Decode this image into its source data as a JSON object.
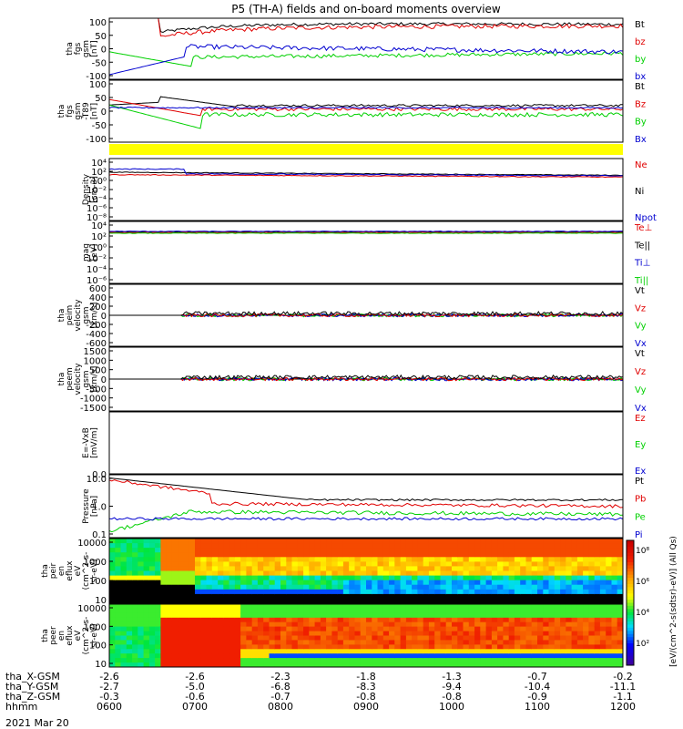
{
  "title": "P5 (TH-A) fields and on-board moments overview",
  "date": "2021 Mar 20",
  "colors": {
    "black": "#000000",
    "red": "#e00000",
    "green": "#00d000",
    "blue": "#0000d0",
    "yellow": "#ffff00"
  },
  "chart_data": [
    {
      "id": "fgs",
      "type": "line",
      "ylabel": [
        "tha",
        "fgs",
        "gsm",
        "[nT]"
      ],
      "yticks": [
        "100",
        "50",
        "0",
        "-50",
        "-100"
      ],
      "ylim": [
        -100,
        100
      ],
      "legend": [
        {
          "label": "Bt",
          "color": "black"
        },
        {
          "label": "bz",
          "color": "red"
        },
        {
          "label": "by",
          "color": "green"
        },
        {
          "label": "bx",
          "color": "blue"
        }
      ]
    },
    {
      "id": "fgs_t89",
      "type": "line",
      "ylabel": [
        "tha",
        "fgs",
        "gsm",
        "-T89",
        "[nT]"
      ],
      "yticks": [
        "100",
        "50",
        "0",
        "-50",
        "-100"
      ],
      "ylim": [
        -125,
        100
      ],
      "legend": [
        {
          "label": "Bt",
          "color": "black"
        },
        {
          "label": "Bz",
          "color": "red"
        },
        {
          "label": "By",
          "color": "green"
        },
        {
          "label": "Bx",
          "color": "blue"
        }
      ]
    },
    {
      "id": "density",
      "type": "line",
      "scale": "log",
      "ylabel": [
        "Density",
        "[cm-3]"
      ],
      "yticks": [
        "10⁴",
        "10²",
        "10⁰",
        "10⁻²",
        "10⁻⁴",
        "10⁻⁶",
        "10⁻⁸"
      ],
      "legend": [
        {
          "label": "Ne",
          "color": "red"
        },
        {
          "label": "Ni",
          "color": "black"
        },
        {
          "label": "Npot",
          "color": "blue"
        }
      ]
    },
    {
      "id": "temperature",
      "type": "line",
      "scale": "log",
      "ylabel": [
        "mag ",
        "[eV]"
      ],
      "yticks": [
        "10⁴",
        "10²",
        "10⁰",
        "10⁻²",
        "10⁻⁴",
        "10⁻⁶"
      ],
      "legend": [
        {
          "label": "Te⊥",
          "color": "red"
        },
        {
          "label": "Te||",
          "color": "black"
        },
        {
          "label": "Ti⊥",
          "color": "blue"
        },
        {
          "label": "Ti||",
          "color": "green"
        }
      ]
    },
    {
      "id": "peim_velocity",
      "type": "line",
      "ylabel": [
        "tha",
        "peim",
        "velocity",
        "gsm",
        "[km/s]"
      ],
      "yticks": [
        "600",
        "400",
        "200",
        "0",
        "-200",
        "-400",
        "-600"
      ],
      "ylim": [
        -600,
        600
      ],
      "legend": [
        {
          "label": "Vt",
          "color": "black"
        },
        {
          "label": "Vz",
          "color": "red"
        },
        {
          "label": "Vy",
          "color": "green"
        },
        {
          "label": "Vx",
          "color": "blue"
        }
      ]
    },
    {
      "id": "peem_velocity",
      "type": "line",
      "ylabel": [
        "tha",
        "peem",
        "velocity",
        "gsm",
        "[km/s]"
      ],
      "yticks": [
        "1500",
        "1000",
        "500",
        "0",
        "-500",
        "-1000",
        "-1500"
      ],
      "ylim": [
        -1500,
        1500
      ],
      "legend": [
        {
          "label": "Vt",
          "color": "black"
        },
        {
          "label": "Vz",
          "color": "red"
        },
        {
          "label": "Vy",
          "color": "green"
        },
        {
          "label": "Vx",
          "color": "blue"
        }
      ]
    },
    {
      "id": "efield",
      "type": "line",
      "ylabel": [
        "E=-VxB",
        "[mV/m]"
      ],
      "yticks": [
        "0.0"
      ],
      "legend": [
        {
          "label": "Ez",
          "color": "red"
        },
        {
          "label": "Ey",
          "color": "green"
        },
        {
          "label": "Ex",
          "color": "blue"
        }
      ]
    },
    {
      "id": "pressure",
      "type": "line",
      "scale": "log",
      "ylabel": [
        "Pressure",
        "[nPa]"
      ],
      "yticks": [
        "10.0",
        "1.0",
        "0.1"
      ],
      "legend": [
        {
          "label": "Pt",
          "color": "black"
        },
        {
          "label": "Pb",
          "color": "red"
        },
        {
          "label": "Pe",
          "color": "green"
        },
        {
          "label": "Pi",
          "color": "blue"
        }
      ]
    },
    {
      "id": "peir_spectrogram",
      "type": "heatmap",
      "ylabel": [
        "tha",
        "peir",
        "en",
        "eflux",
        "eV",
        "(cm^2-s-",
        "sr-eV)"
      ],
      "yticks": [
        "10000",
        "1000",
        "100",
        "10"
      ]
    },
    {
      "id": "peer_spectrogram",
      "type": "heatmap",
      "ylabel": [
        "tha",
        "peer",
        "en",
        "eflux",
        "eV",
        "(cm^2-s-",
        "sr-eV)"
      ],
      "yticks": [
        "10000",
        "1000",
        "100",
        "10"
      ]
    }
  ],
  "colorbar": {
    "ticks": [
      "10⁸",
      "10⁶",
      "10⁴",
      "10²"
    ],
    "label": "[eV/(cm^2-s(sdtsr)-eV)] (All Qs)"
  },
  "xaxis": {
    "row_labels": [
      "tha_X-GSM",
      "tha_Y-GSM",
      "tha_Z-GSM",
      "hhmm"
    ],
    "columns": [
      {
        "x": "-2.6",
        "y": "-2.7",
        "z": "-0.3",
        "t": "0600"
      },
      {
        "x": "-2.6",
        "y": "-5.0",
        "z": "-0.6",
        "t": "0700"
      },
      {
        "x": "-2.3",
        "y": "-6.8",
        "z": "-0.7",
        "t": "0800"
      },
      {
        "x": "-1.8",
        "y": "-8.3",
        "z": "-0.8",
        "t": "0900"
      },
      {
        "x": "-1.3",
        "y": "-9.4",
        "z": "-0.8",
        "t": "1000"
      },
      {
        "x": "-0.7",
        "y": "-10.4",
        "z": "-0.9",
        "t": "1100"
      },
      {
        "x": "-0.2",
        "y": "-11.1",
        "z": "-1.1",
        "t": "1200"
      }
    ]
  }
}
